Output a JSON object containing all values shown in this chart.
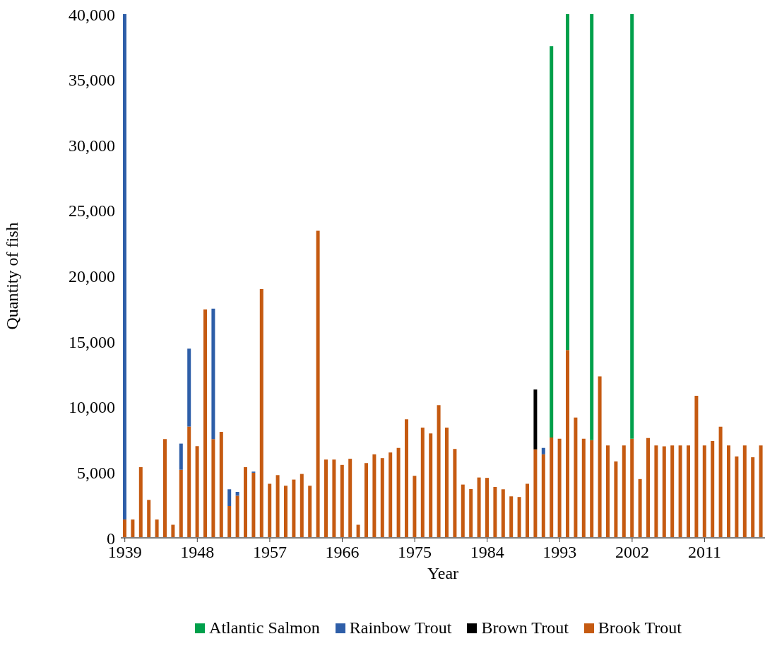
{
  "chart_data": {
    "type": "bar",
    "stacked": true,
    "xlabel": "Year",
    "ylabel": "Quantity of fish",
    "legend": "bottom",
    "grid": false,
    "categories": [
      "1939",
      null,
      null,
      null,
      null,
      null,
      null,
      null,
      null,
      "1948",
      null,
      null,
      null,
      null,
      null,
      null,
      null,
      null,
      "1957",
      null,
      null,
      null,
      null,
      null,
      null,
      null,
      null,
      "1966",
      null,
      null,
      null,
      null,
      null,
      null,
      null,
      null,
      "1975",
      null,
      null,
      null,
      null,
      null,
      null,
      null,
      null,
      "1984",
      null,
      null,
      null,
      null,
      null,
      null,
      null,
      null,
      "1993",
      null,
      null,
      null,
      null,
      null,
      null,
      null,
      null,
      "2002",
      null,
      null,
      null,
      null,
      null,
      null,
      null,
      null,
      "2011",
      null,
      null,
      null,
      null,
      null,
      null,
      null
    ],
    "ylim": [
      0,
      40000
    ],
    "yticks": [
      0,
      {
        "value": 5000,
        "label": "5,000"
      },
      {
        "value": 10000,
        "label": "10,000"
      },
      {
        "value": 15000,
        "label": "15,000"
      },
      {
        "value": 20000,
        "label": "20,000"
      },
      {
        "value": 25000,
        "label": "25,000"
      },
      {
        "value": 30000,
        "label": "30,000"
      },
      {
        "value": 35000,
        "label": "35,000"
      },
      {
        "value": 40000,
        "label": "40,000"
      }
    ],
    "series": [
      {
        "name": "Brook Trout",
        "color": "#c55a11",
        "values": [
          1400,
          1400,
          5400,
          2900,
          1400,
          7550,
          1000,
          5200,
          8500,
          7000,
          17450,
          7550,
          8100,
          2430,
          3220,
          5400,
          4970,
          19000,
          4130,
          4790,
          3980,
          4450,
          4880,
          3980,
          23450,
          5980,
          5980,
          5570,
          6040,
          1000,
          5710,
          6380,
          6090,
          6520,
          6870,
          9060,
          4740,
          8420,
          7970,
          10130,
          8420,
          6790,
          4070,
          3730,
          4610,
          4580,
          3890,
          3710,
          3170,
          3120,
          4130,
          6760,
          6380,
          7660,
          7570,
          14340,
          9190,
          7570,
          7460,
          12340,
          7060,
          5840,
          7060,
          7570,
          4490,
          7620,
          7060,
          6990,
          7060,
          7060,
          7060,
          10850,
          7060,
          7390,
          8490,
          7060,
          6220,
          7060,
          6160,
          7060
        ]
      },
      {
        "name": "Brown Trout",
        "color": "#000000",
        "values": [
          null,
          null,
          null,
          null,
          null,
          null,
          null,
          null,
          null,
          null,
          null,
          null,
          null,
          null,
          null,
          null,
          null,
          null,
          null,
          null,
          null,
          null,
          null,
          null,
          null,
          null,
          null,
          null,
          null,
          null,
          null,
          null,
          null,
          null,
          null,
          null,
          null,
          null,
          null,
          null,
          null,
          null,
          null,
          null,
          null,
          null,
          null,
          null,
          null,
          null,
          null,
          4570,
          null,
          null,
          null,
          null,
          null,
          null,
          null,
          null,
          null,
          null,
          null,
          null,
          null,
          null,
          null,
          null,
          null,
          null,
          null,
          null,
          null,
          null,
          null,
          null,
          null,
          null,
          null,
          null
        ]
      },
      {
        "name": "Rainbow Trout",
        "color": "#2e5ea8",
        "values": [
          38600,
          null,
          null,
          null,
          null,
          null,
          null,
          2000,
          5950,
          null,
          null,
          9950,
          null,
          1280,
          290,
          null,
          90,
          null,
          null,
          null,
          null,
          null,
          null,
          null,
          null,
          null,
          null,
          null,
          null,
          null,
          null,
          null,
          null,
          null,
          null,
          null,
          null,
          null,
          null,
          null,
          null,
          null,
          null,
          null,
          null,
          null,
          null,
          null,
          null,
          null,
          null,
          null,
          490,
          null,
          null,
          null,
          null,
          null,
          null,
          null,
          null,
          null,
          null,
          null,
          null,
          null,
          null,
          null,
          null,
          null,
          null,
          null,
          null,
          null,
          null,
          null,
          null,
          null,
          null,
          null
        ]
      },
      {
        "name": "Atlantic Salmon",
        "color": "#00a04b",
        "values": [
          null,
          null,
          null,
          null,
          null,
          null,
          null,
          null,
          null,
          null,
          null,
          null,
          null,
          null,
          null,
          null,
          null,
          null,
          null,
          null,
          null,
          null,
          null,
          null,
          null,
          null,
          null,
          null,
          null,
          null,
          null,
          null,
          null,
          null,
          null,
          null,
          null,
          null,
          null,
          null,
          null,
          null,
          null,
          null,
          null,
          null,
          null,
          null,
          null,
          null,
          null,
          null,
          null,
          29900,
          null,
          25660,
          null,
          null,
          32540,
          null,
          null,
          null,
          null,
          32430,
          null,
          null,
          null,
          null,
          null,
          null,
          null,
          null,
          null,
          null,
          null,
          null,
          null,
          null,
          null,
          null
        ]
      }
    ]
  }
}
